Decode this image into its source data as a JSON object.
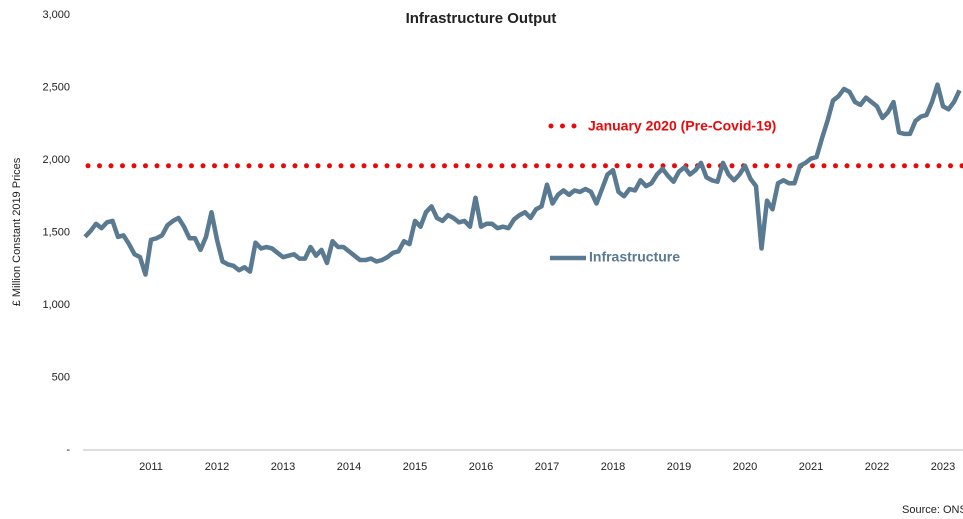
{
  "chart_data": {
    "type": "line",
    "title": "Infrastructure Output",
    "y_label": "£ Million Constant 2019 Prices",
    "source": "Source: ONS",
    "categories": [
      null,
      null,
      null,
      null,
      null,
      null,
      null,
      null,
      null,
      null,
      null,
      null,
      "2011",
      null,
      null,
      null,
      null,
      null,
      null,
      null,
      null,
      null,
      null,
      null,
      "2012",
      null,
      null,
      null,
      null,
      null,
      null,
      null,
      null,
      null,
      null,
      null,
      "2013",
      null,
      null,
      null,
      null,
      null,
      null,
      null,
      null,
      null,
      null,
      null,
      "2014",
      null,
      null,
      null,
      null,
      null,
      null,
      null,
      null,
      null,
      null,
      null,
      "2015",
      null,
      null,
      null,
      null,
      null,
      null,
      null,
      null,
      null,
      null,
      null,
      "2016",
      null,
      null,
      null,
      null,
      null,
      null,
      null,
      null,
      null,
      null,
      null,
      "2017",
      null,
      null,
      null,
      null,
      null,
      null,
      null,
      null,
      null,
      null,
      null,
      "2018",
      null,
      null,
      null,
      null,
      null,
      null,
      null,
      null,
      null,
      null,
      null,
      "2019",
      null,
      null,
      null,
      null,
      null,
      null,
      null,
      null,
      null,
      null,
      null,
      "2020",
      null,
      null,
      null,
      null,
      null,
      null,
      null,
      null,
      null,
      null,
      null,
      "2021",
      null,
      null,
      null,
      null,
      null,
      null,
      null,
      null,
      null,
      null,
      null,
      "2022",
      null,
      null,
      null,
      null,
      null,
      null,
      null,
      null,
      null,
      null,
      null,
      "2023",
      null,
      null,
      null
    ],
    "series": [
      {
        "name": "Infrastructure",
        "color": "#5a7a92",
        "values": [
          1470,
          1510,
          1560,
          1530,
          1570,
          1580,
          1470,
          1480,
          1420,
          1350,
          1330,
          1210,
          1450,
          1460,
          1480,
          1550,
          1580,
          1600,
          1540,
          1460,
          1460,
          1380,
          1470,
          1640,
          1450,
          1300,
          1280,
          1270,
          1240,
          1260,
          1230,
          1430,
          1390,
          1400,
          1390,
          1360,
          1330,
          1340,
          1350,
          1320,
          1320,
          1400,
          1340,
          1380,
          1290,
          1440,
          1400,
          1400,
          1370,
          1340,
          1310,
          1310,
          1320,
          1300,
          1310,
          1330,
          1360,
          1370,
          1440,
          1420,
          1580,
          1540,
          1640,
          1680,
          1600,
          1580,
          1620,
          1600,
          1570,
          1580,
          1540,
          1740,
          1540,
          1560,
          1560,
          1530,
          1540,
          1530,
          1590,
          1620,
          1640,
          1600,
          1660,
          1680,
          1830,
          1700,
          1760,
          1790,
          1760,
          1790,
          1780,
          1800,
          1780,
          1700,
          1800,
          1900,
          1930,
          1780,
          1750,
          1800,
          1790,
          1860,
          1820,
          1840,
          1900,
          1940,
          1890,
          1850,
          1920,
          1950,
          1900,
          1930,
          1980,
          1880,
          1860,
          1850,
          1980,
          1900,
          1860,
          1900,
          1960,
          1870,
          1820,
          1390,
          1720,
          1660,
          1840,
          1860,
          1840,
          1840,
          1960,
          1980,
          2010,
          2020,
          2150,
          2270,
          2410,
          2440,
          2490,
          2470,
          2400,
          2380,
          2430,
          2400,
          2370,
          2290,
          2330,
          2400,
          2190,
          2180,
          2180,
          2270,
          2300,
          2310,
          2400,
          2520,
          2370,
          2350,
          2400,
          2480
        ]
      }
    ],
    "reference_line": {
      "name": "January 2020 (Pre-Covid-19)",
      "value": 1960,
      "color": "#e8090b"
    },
    "ylim": [
      0,
      3000
    ],
    "yticks": [
      {
        "value": 0,
        "label": "-"
      },
      500,
      {
        "value": 1000,
        "label": "1,000"
      },
      {
        "value": 1500,
        "label": "1,500"
      },
      {
        "value": 2000,
        "label": "2,000"
      },
      {
        "value": 2500,
        "label": "2,500"
      },
      {
        "value": 3000,
        "label": "3,000"
      }
    ],
    "grid": false
  }
}
